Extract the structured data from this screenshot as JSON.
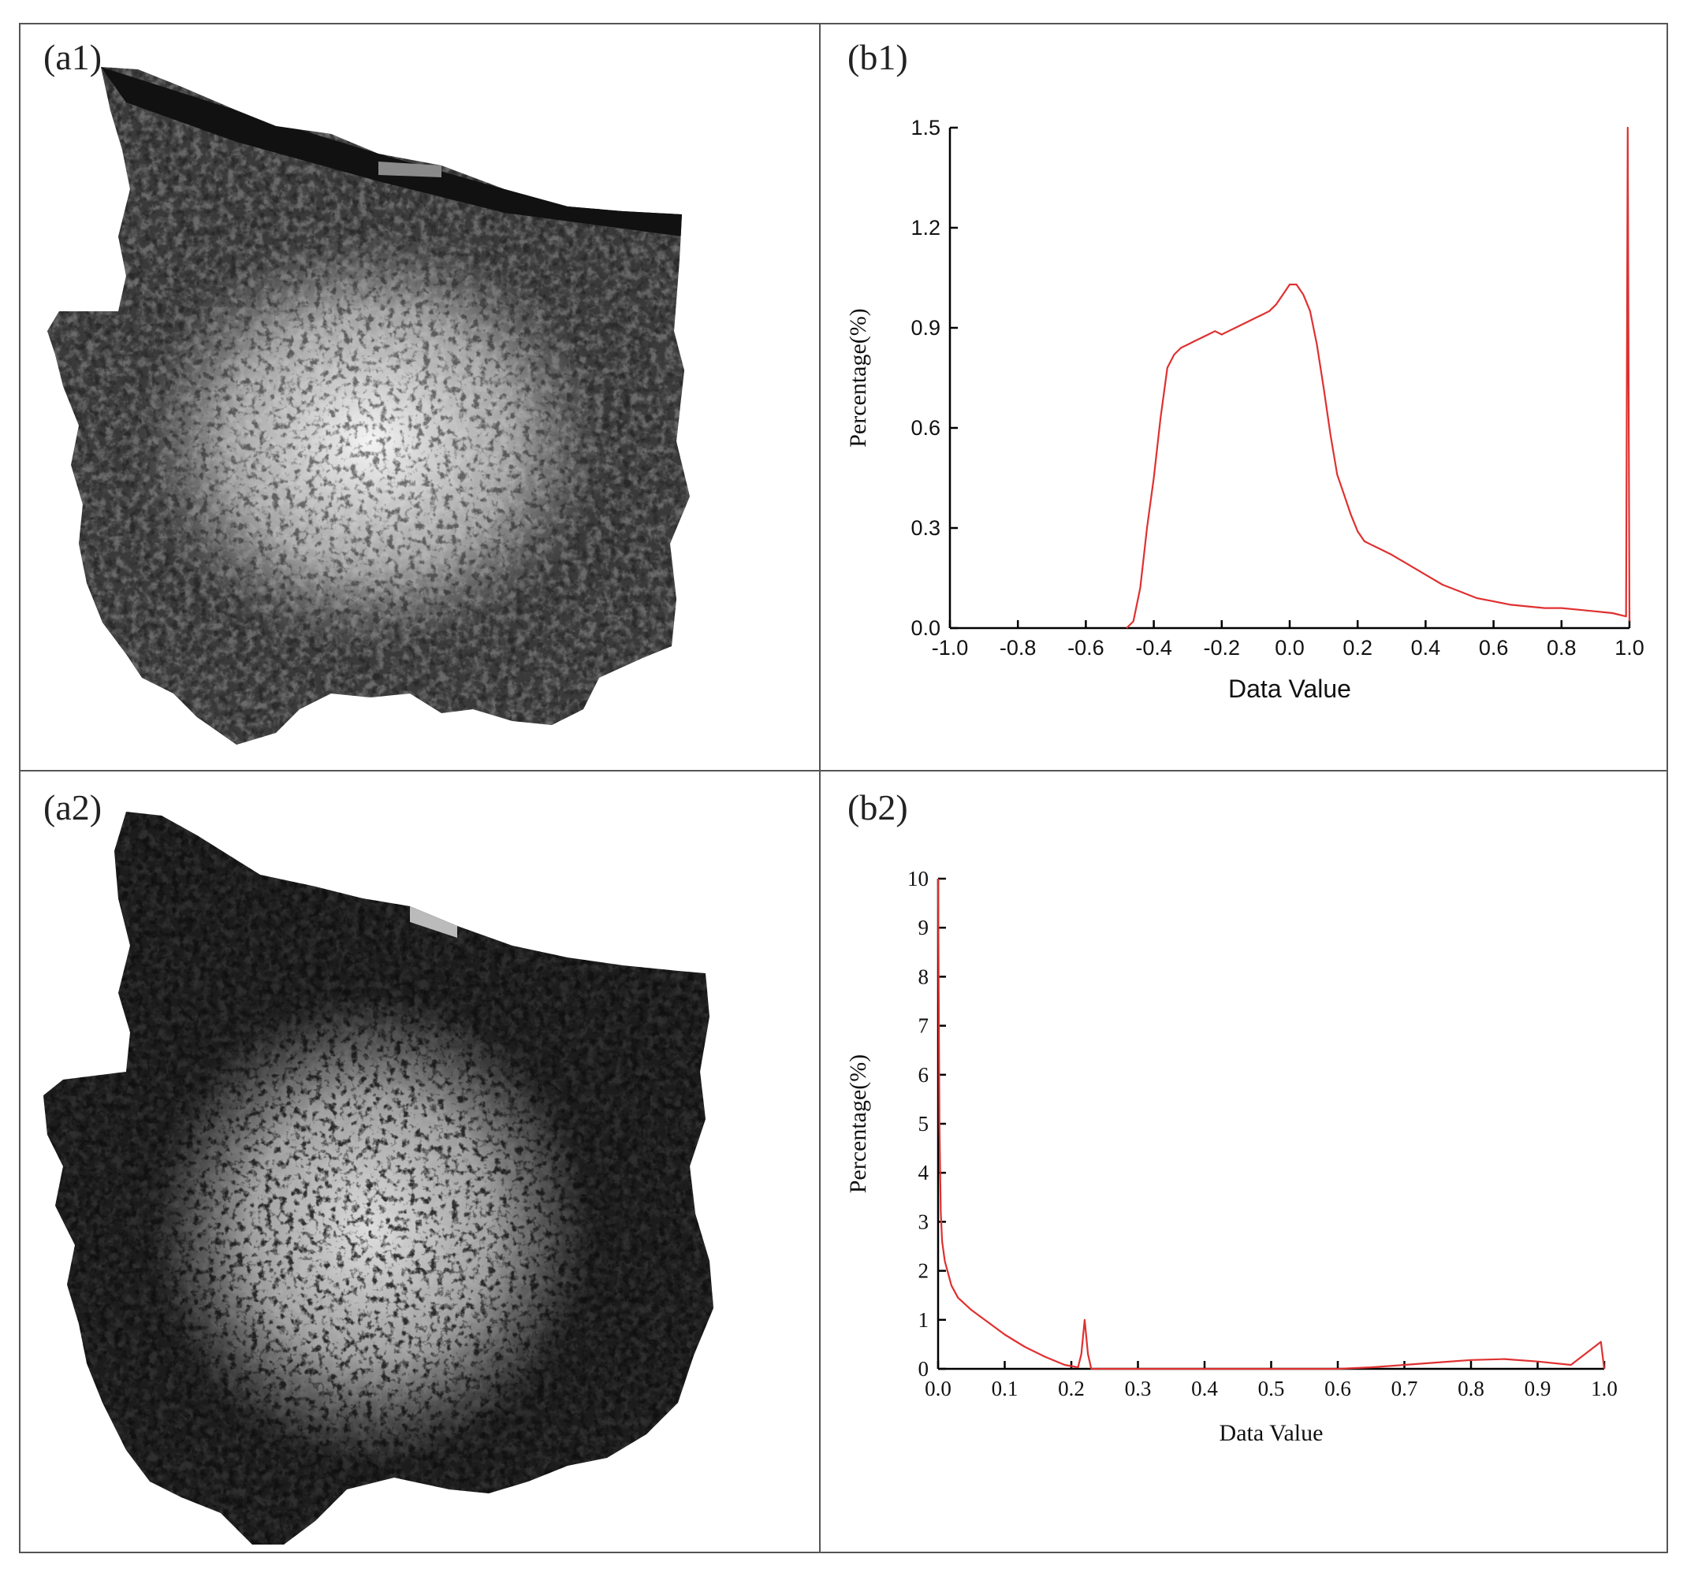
{
  "panels": {
    "a1": "(a1)",
    "a2": "(a2)",
    "b1": "(b1)",
    "b2": "(b2)"
  },
  "colors": {
    "series": "#e03030",
    "map_dark": "#2a2a2a",
    "map_light": "#f2f2f2"
  },
  "chart_data": [
    {
      "id": "b1",
      "type": "line",
      "xlabel": "Data Value",
      "ylabel": "Percentage(%)",
      "xlim": [
        -1.0,
        1.0
      ],
      "ylim": [
        0.0,
        1.5
      ],
      "xticks": [
        "-1.0",
        "-0.8",
        "-0.6",
        "-0.4",
        "-0.2",
        "0.0",
        "0.2",
        "0.4",
        "0.6",
        "0.8",
        "1.0"
      ],
      "yticks": [
        "0.0",
        "0.3",
        "0.6",
        "0.9",
        "1.2",
        "1.5"
      ],
      "x": [
        -0.48,
        -0.46,
        -0.44,
        -0.42,
        -0.4,
        -0.38,
        -0.36,
        -0.34,
        -0.32,
        -0.3,
        -0.28,
        -0.26,
        -0.24,
        -0.22,
        -0.2,
        -0.18,
        -0.16,
        -0.14,
        -0.12,
        -0.1,
        -0.08,
        -0.06,
        -0.04,
        -0.02,
        0.0,
        0.02,
        0.04,
        0.06,
        0.08,
        0.1,
        0.12,
        0.14,
        0.16,
        0.18,
        0.2,
        0.22,
        0.24,
        0.26,
        0.3,
        0.35,
        0.4,
        0.45,
        0.5,
        0.55,
        0.6,
        0.65,
        0.7,
        0.75,
        0.8,
        0.85,
        0.9,
        0.95,
        0.99,
        0.995,
        1.0
      ],
      "y": [
        0.0,
        0.02,
        0.12,
        0.3,
        0.45,
        0.63,
        0.78,
        0.82,
        0.84,
        0.85,
        0.86,
        0.87,
        0.88,
        0.89,
        0.88,
        0.89,
        0.9,
        0.91,
        0.92,
        0.93,
        0.94,
        0.95,
        0.97,
        1.0,
        1.03,
        1.03,
        1.0,
        0.95,
        0.85,
        0.72,
        0.58,
        0.46,
        0.4,
        0.34,
        0.29,
        0.26,
        0.25,
        0.24,
        0.22,
        0.19,
        0.16,
        0.13,
        0.11,
        0.09,
        0.08,
        0.07,
        0.065,
        0.06,
        0.06,
        0.055,
        0.05,
        0.045,
        0.035,
        1.5,
        0.02
      ],
      "grid": false,
      "series_color": "#e03030"
    },
    {
      "id": "b2",
      "type": "line",
      "xlabel": "Data Value",
      "ylabel": "Percentage(%)",
      "xlim": [
        0.0,
        1.0
      ],
      "ylim": [
        0,
        10
      ],
      "xticks": [
        "0.0",
        "0.1",
        "0.2",
        "0.3",
        "0.4",
        "0.5",
        "0.6",
        "0.7",
        "0.8",
        "0.9",
        "1.0"
      ],
      "yticks": [
        "0",
        "1",
        "2",
        "3",
        "4",
        "5",
        "6",
        "7",
        "8",
        "9",
        "10"
      ],
      "x": [
        0.0,
        0.002,
        0.004,
        0.006,
        0.01,
        0.02,
        0.03,
        0.05,
        0.08,
        0.1,
        0.13,
        0.16,
        0.19,
        0.21,
        0.215,
        0.22,
        0.225,
        0.23,
        0.3,
        0.4,
        0.5,
        0.6,
        0.65,
        0.7,
        0.75,
        0.8,
        0.85,
        0.9,
        0.95,
        0.995,
        1.0
      ],
      "y": [
        10.0,
        5.0,
        3.2,
        2.6,
        2.2,
        1.7,
        1.45,
        1.2,
        0.9,
        0.7,
        0.45,
        0.25,
        0.08,
        0.03,
        0.3,
        1.0,
        0.3,
        0.0,
        0.0,
        0.0,
        0.0,
        0.0,
        0.03,
        0.08,
        0.13,
        0.18,
        0.2,
        0.15,
        0.08,
        0.55,
        0.0
      ],
      "grid": false,
      "series_color": "#e03030"
    }
  ]
}
